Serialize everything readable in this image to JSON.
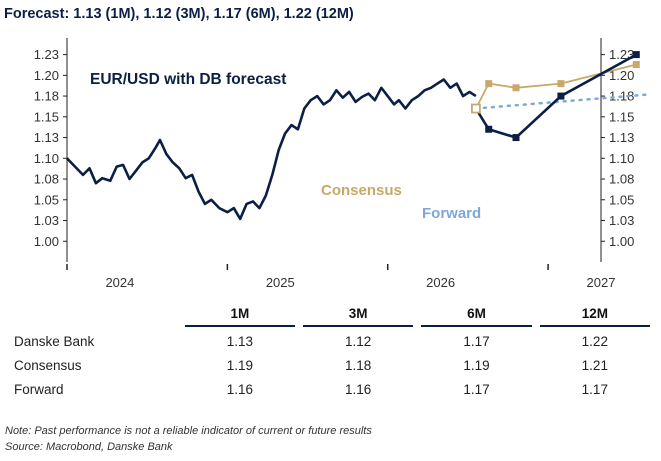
{
  "headline": "Forecast: 1.13 (1M), 1.12 (3M), 1.17 (6M), 1.22 (12M)",
  "chart_data": {
    "type": "line",
    "title": "EUR/USD with DB forecast",
    "ylim": [
      0.975,
      1.245
    ],
    "yticks": [
      "1.00",
      "1.03",
      "1.05",
      "1.08",
      "1.10",
      "1.13",
      "1.15",
      "1.18",
      "1.20",
      "1.23"
    ],
    "ytick_values": [
      1.0,
      1.025,
      1.05,
      1.075,
      1.1,
      1.125,
      1.15,
      1.175,
      1.2,
      1.225
    ],
    "xlim": [
      2023.67,
      2027.0
    ],
    "x_labels": [
      "2024",
      "2025",
      "2026",
      "2027"
    ],
    "x_label_pos": [
      2024.0,
      2025.0,
      2026.0,
      2027.0
    ],
    "x_ticks": [
      2023.67,
      2024.67,
      2025.67,
      2026.67
    ],
    "colors": {
      "history": "#0b1f45",
      "consensus": "#c9a86a",
      "forward": "#7fa7d9"
    },
    "series": [
      {
        "name": "EUR/USD",
        "x": [
          2023.67,
          2023.72,
          2023.77,
          2023.81,
          2023.85,
          2023.89,
          2023.94,
          2023.98,
          2024.02,
          2024.06,
          2024.1,
          2024.14,
          2024.18,
          2024.22,
          2024.25,
          2024.29,
          2024.33,
          2024.37,
          2024.41,
          2024.45,
          2024.49,
          2024.53,
          2024.57,
          2024.62,
          2024.67,
          2024.71,
          2024.75,
          2024.79,
          2024.83,
          2024.87,
          2024.91,
          2024.95,
          2024.99,
          2025.03,
          2025.07,
          2025.11,
          2025.15,
          2025.19,
          2025.23,
          2025.27,
          2025.31,
          2025.35,
          2025.39,
          2025.43,
          2025.47,
          2025.51,
          2025.55,
          2025.59,
          2025.63,
          2025.67,
          2025.71,
          2025.74,
          2025.78,
          2025.82,
          2025.86,
          2025.9,
          2025.94,
          2025.98,
          2026.02,
          2026.06,
          2026.1,
          2026.14,
          2026.18,
          2026.22
        ],
        "values": [
          1.1,
          1.09,
          1.08,
          1.088,
          1.07,
          1.076,
          1.073,
          1.09,
          1.092,
          1.075,
          1.085,
          1.095,
          1.1,
          1.112,
          1.122,
          1.105,
          1.095,
          1.088,
          1.076,
          1.08,
          1.06,
          1.045,
          1.05,
          1.04,
          1.035,
          1.04,
          1.027,
          1.045,
          1.048,
          1.04,
          1.055,
          1.08,
          1.11,
          1.13,
          1.14,
          1.135,
          1.16,
          1.17,
          1.175,
          1.165,
          1.17,
          1.182,
          1.173,
          1.18,
          1.168,
          1.174,
          1.178,
          1.17,
          1.185,
          1.175,
          1.165,
          1.17,
          1.16,
          1.17,
          1.175,
          1.182,
          1.185,
          1.19,
          1.195,
          1.185,
          1.19,
          1.175,
          1.18,
          1.175
        ]
      },
      {
        "name": "DB forecast",
        "x": [
          2026.22,
          2026.3,
          2026.47,
          2026.75,
          2027.22
        ],
        "values": [
          1.16,
          1.135,
          1.125,
          1.175,
          1.225
        ]
      },
      {
        "name": "Consensus",
        "x": [
          2026.22,
          2026.3,
          2026.47,
          2026.75,
          2027.22
        ],
        "values": [
          1.16,
          1.19,
          1.185,
          1.19,
          1.213
        ]
      },
      {
        "name": "Forward",
        "x": [
          2026.22,
          2027.3
        ],
        "values": [
          1.16,
          1.177
        ]
      }
    ],
    "legend": [
      "Consensus",
      "Forward"
    ]
  },
  "table": {
    "columns": [
      "1M",
      "3M",
      "6M",
      "12M"
    ],
    "rows": [
      {
        "name": "Danske Bank",
        "values": [
          "1.13",
          "1.12",
          "1.17",
          "1.22"
        ]
      },
      {
        "name": "Consensus",
        "values": [
          "1.19",
          "1.18",
          "1.19",
          "1.21"
        ]
      },
      {
        "name": "Forward",
        "values": [
          "1.16",
          "1.16",
          "1.17",
          "1.17"
        ]
      }
    ]
  },
  "notes": {
    "disclaimer": "Note: Past performance is not a reliable indicator of current or future results",
    "source": "Source: Macrobond, Danske Bank"
  }
}
